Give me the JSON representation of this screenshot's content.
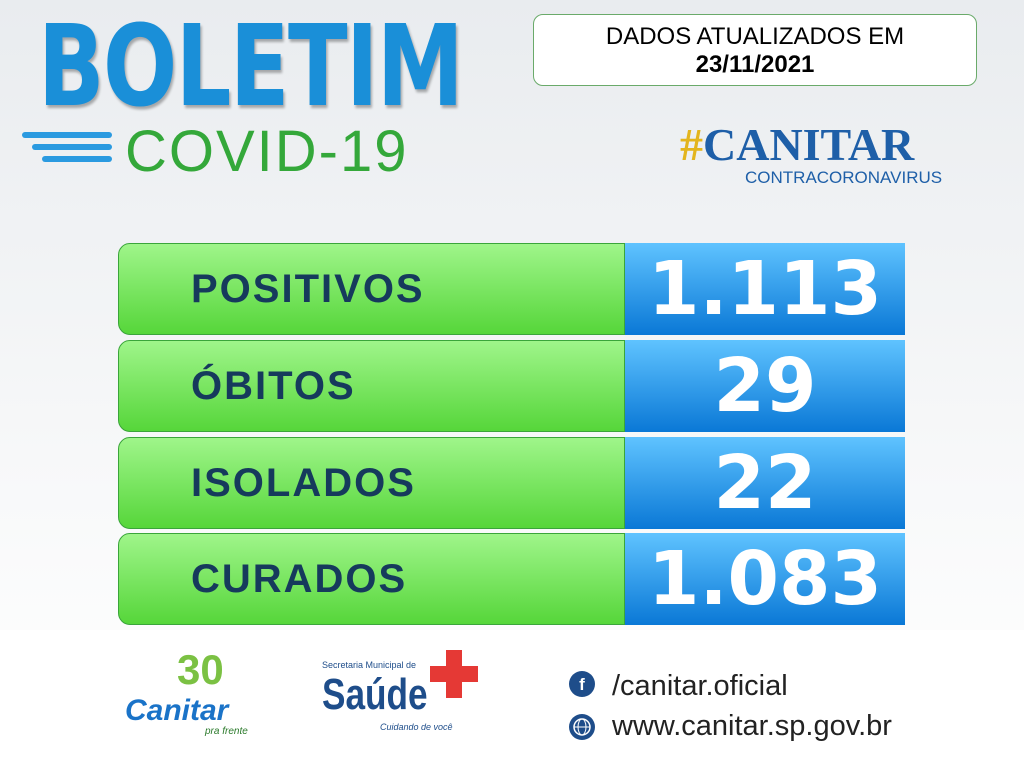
{
  "header": {
    "title": "BOLETIM",
    "subtitle": "COVID-19",
    "update_label": "DADOS ATUALIZADOS EM",
    "update_date": "23/11/2021",
    "hashtag": "#CANITAR",
    "hashtag_sub": "CONTRACORONAVIRUS"
  },
  "rows": [
    {
      "label": "POSITIVOS",
      "value": "1.113"
    },
    {
      "label": "ÓBITOS",
      "value": "29"
    },
    {
      "label": "ISOLADOS",
      "value": "22"
    },
    {
      "label": "CURADOS",
      "value": "1.083"
    }
  ],
  "footer": {
    "logo1_number": "30",
    "logo1_name": "Canitar",
    "logo1_tagline": "pra frente",
    "logo2_top": "Secretaria Municipal de",
    "logo2_name": "Saúde",
    "logo2_tagline": "Cuidando de você",
    "facebook": "/canitar.oficial",
    "website": "www.canitar.sp.gov.br"
  }
}
